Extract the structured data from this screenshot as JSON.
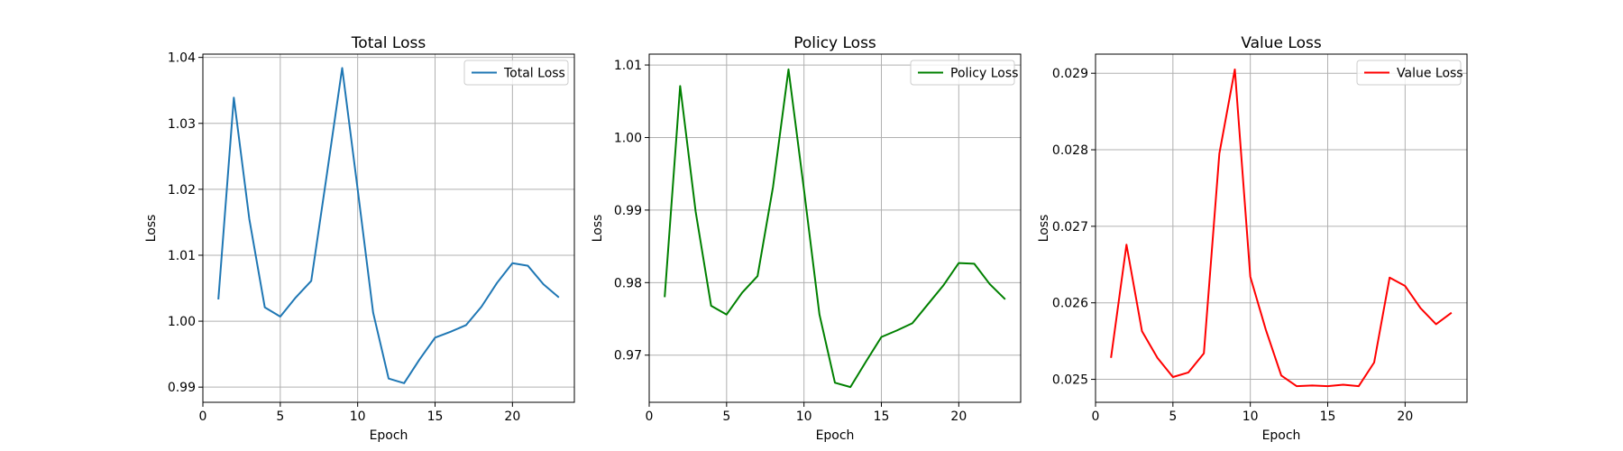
{
  "chart_data": [
    {
      "type": "line",
      "title": "Total Loss",
      "xlabel": "Epoch",
      "ylabel": "Loss",
      "xlim": [
        0,
        24
      ],
      "ylim": [
        0.9877,
        1.0405
      ],
      "xticks": [
        0,
        5,
        10,
        15,
        20
      ],
      "yticks": [
        0.99,
        1.0,
        1.01,
        1.02,
        1.03,
        1.04
      ],
      "ytick_labels": [
        "0.99",
        "1.00",
        "1.01",
        "1.02",
        "1.03",
        "1.04"
      ],
      "grid": true,
      "legend": "upper right",
      "series": [
        {
          "name": "Total Loss",
          "color": "#1f77b4",
          "x": [
            1,
            2,
            3,
            4,
            5,
            6,
            7,
            8,
            9,
            10,
            11,
            12,
            13,
            14,
            15,
            16,
            17,
            18,
            19,
            20,
            21,
            22,
            23
          ],
          "y": [
            1.0033,
            1.0339,
            1.0155,
            1.0021,
            1.0007,
            1.0036,
            1.0061,
            1.0221,
            1.0384,
            1.02,
            1.0013,
            0.9913,
            0.9906,
            0.9942,
            0.9975,
            0.9984,
            0.9994,
            1.0022,
            1.0058,
            1.0088,
            1.0084,
            1.0056,
            1.0036
          ]
        }
      ]
    },
    {
      "type": "line",
      "title": "Policy Loss",
      "xlabel": "Epoch",
      "ylabel": "Loss",
      "xlim": [
        0,
        24
      ],
      "ylim": [
        0.9635,
        1.0115
      ],
      "xticks": [
        0,
        5,
        10,
        15,
        20
      ],
      "yticks": [
        0.97,
        0.98,
        0.99,
        1.0,
        1.01
      ],
      "ytick_labels": [
        "0.97",
        "0.98",
        "0.99",
        "1.00",
        "1.01"
      ],
      "grid": true,
      "legend": "upper right",
      "series": [
        {
          "name": "Policy Loss",
          "color": "#008000",
          "x": [
            1,
            2,
            3,
            4,
            5,
            6,
            7,
            8,
            9,
            10,
            11,
            12,
            13,
            14,
            15,
            16,
            17,
            18,
            19,
            20,
            21,
            22,
            23
          ],
          "y": [
            0.978,
            1.0071,
            0.9898,
            0.9768,
            0.9756,
            0.9786,
            0.9809,
            0.9932,
            1.0094,
            0.9928,
            0.9756,
            0.9662,
            0.9656,
            0.9691,
            0.9725,
            0.9734,
            0.9744,
            0.977,
            0.9796,
            0.9827,
            0.9826,
            0.9798,
            0.9777
          ]
        }
      ]
    },
    {
      "type": "line",
      "title": "Value Loss",
      "xlabel": "Epoch",
      "ylabel": "Loss",
      "xlim": [
        0,
        24
      ],
      "ylim": [
        0.0247,
        0.02925
      ],
      "xticks": [
        0,
        5,
        10,
        15,
        20
      ],
      "yticks": [
        0.025,
        0.026,
        0.027,
        0.028,
        0.029
      ],
      "ytick_labels": [
        "0.025",
        "0.026",
        "0.027",
        "0.028",
        "0.029"
      ],
      "grid": true,
      "legend": "upper right",
      "series": [
        {
          "name": "Value Loss",
          "color": "#ff0000",
          "x": [
            1,
            2,
            3,
            4,
            5,
            6,
            7,
            8,
            9,
            10,
            11,
            12,
            13,
            14,
            15,
            16,
            17,
            18,
            19,
            20,
            21,
            22,
            23
          ],
          "y": [
            0.02528,
            0.02676,
            0.02563,
            0.02528,
            0.02503,
            0.02509,
            0.02534,
            0.02795,
            0.02905,
            0.02634,
            0.02565,
            0.02505,
            0.02491,
            0.02492,
            0.02491,
            0.02493,
            0.02491,
            0.02522,
            0.02633,
            0.02622,
            0.02593,
            0.02572,
            0.02587
          ]
        }
      ]
    }
  ]
}
